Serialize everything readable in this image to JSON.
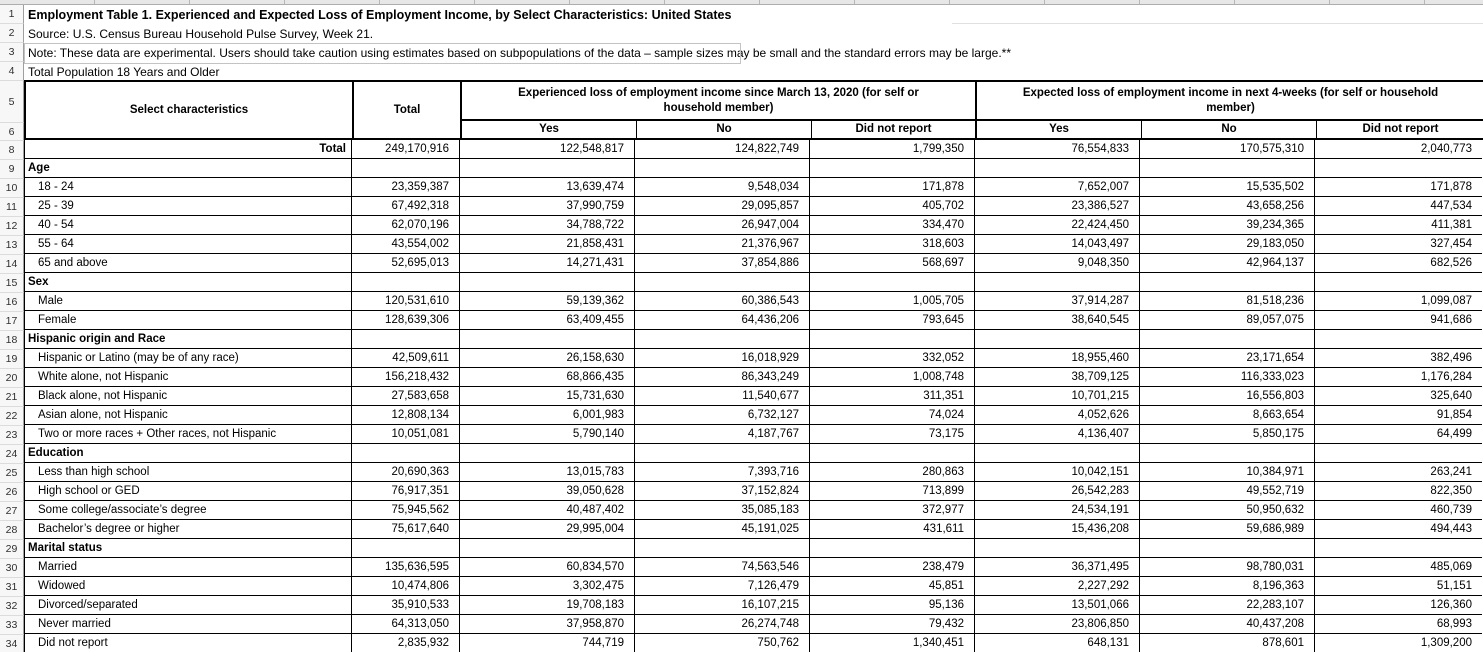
{
  "meta": [
    {
      "text": "Employment Table 1. Experienced and Expected Loss of Employment Income, by Select Characteristics: United States"
    },
    {
      "text": "Source: U.S. Census Bureau Household Pulse Survey, Week 21."
    },
    {
      "text": "Note: These data are experimental. Users should take caution using estimates based on subpopulations of the data – sample sizes may be small and the standard errors may be large.**"
    },
    {
      "text": "Total Population 18 Years and Older"
    }
  ],
  "header": {
    "characteristics": "Select characteristics",
    "total": "Total",
    "groups": [
      {
        "title": "Experienced loss of employment income since March 13, 2020 (for self or household member)",
        "subcols": [
          "Yes",
          "No",
          "Did not report"
        ]
      },
      {
        "title": "Expected loss of employment income in next 4-weeks (for self or household member)",
        "subcols": [
          "Yes",
          "No",
          "Did not report"
        ]
      }
    ]
  },
  "row_numbers": [
    1,
    2,
    3,
    4,
    5,
    6,
    8,
    9,
    10,
    11,
    12,
    13,
    14,
    15,
    16,
    17,
    18,
    19,
    20,
    21,
    22,
    23,
    24,
    25,
    26,
    27,
    28,
    29,
    30,
    31,
    32,
    33,
    34
  ],
  "rows": [
    {
      "n": 8,
      "kind": "total",
      "label": "Total",
      "values": [
        "249,170,916",
        "122,548,817",
        "124,822,749",
        "1,799,350",
        "76,554,833",
        "170,575,310",
        "2,040,773"
      ]
    },
    {
      "n": 9,
      "kind": "section",
      "label": "Age",
      "values": [
        "",
        "",
        "",
        "",
        "",
        "",
        ""
      ]
    },
    {
      "n": 10,
      "kind": "item",
      "label": "18 - 24",
      "values": [
        "23,359,387",
        "13,639,474",
        "9,548,034",
        "171,878",
        "7,652,007",
        "15,535,502",
        "171,878"
      ]
    },
    {
      "n": 11,
      "kind": "item",
      "label": "25 - 39",
      "values": [
        "67,492,318",
        "37,990,759",
        "29,095,857",
        "405,702",
        "23,386,527",
        "43,658,256",
        "447,534"
      ]
    },
    {
      "n": 12,
      "kind": "item",
      "label": "40 - 54",
      "values": [
        "62,070,196",
        "34,788,722",
        "26,947,004",
        "334,470",
        "22,424,450",
        "39,234,365",
        "411,381"
      ]
    },
    {
      "n": 13,
      "kind": "item",
      "label": "55 - 64",
      "values": [
        "43,554,002",
        "21,858,431",
        "21,376,967",
        "318,603",
        "14,043,497",
        "29,183,050",
        "327,454"
      ]
    },
    {
      "n": 14,
      "kind": "item",
      "label": "65 and above",
      "values": [
        "52,695,013",
        "14,271,431",
        "37,854,886",
        "568,697",
        "9,048,350",
        "42,964,137",
        "682,526"
      ]
    },
    {
      "n": 15,
      "kind": "section",
      "label": "Sex",
      "values": [
        "",
        "",
        "",
        "",
        "",
        "",
        ""
      ]
    },
    {
      "n": 16,
      "kind": "item",
      "label": "Male",
      "values": [
        "120,531,610",
        "59,139,362",
        "60,386,543",
        "1,005,705",
        "37,914,287",
        "81,518,236",
        "1,099,087"
      ]
    },
    {
      "n": 17,
      "kind": "item",
      "label": "Female",
      "values": [
        "128,639,306",
        "63,409,455",
        "64,436,206",
        "793,645",
        "38,640,545",
        "89,057,075",
        "941,686"
      ]
    },
    {
      "n": 18,
      "kind": "section",
      "label": "Hispanic origin and Race",
      "values": [
        "",
        "",
        "",
        "",
        "",
        "",
        ""
      ]
    },
    {
      "n": 19,
      "kind": "item",
      "label": "Hispanic or Latino (may be of any race)",
      "values": [
        "42,509,611",
        "26,158,630",
        "16,018,929",
        "332,052",
        "18,955,460",
        "23,171,654",
        "382,496"
      ]
    },
    {
      "n": 20,
      "kind": "item",
      "label": "White alone, not Hispanic",
      "values": [
        "156,218,432",
        "68,866,435",
        "86,343,249",
        "1,008,748",
        "38,709,125",
        "116,333,023",
        "1,176,284"
      ]
    },
    {
      "n": 21,
      "kind": "item",
      "label": "Black alone, not Hispanic",
      "values": [
        "27,583,658",
        "15,731,630",
        "11,540,677",
        "311,351",
        "10,701,215",
        "16,556,803",
        "325,640"
      ]
    },
    {
      "n": 22,
      "kind": "item",
      "label": "Asian alone, not Hispanic",
      "values": [
        "12,808,134",
        "6,001,983",
        "6,732,127",
        "74,024",
        "4,052,626",
        "8,663,654",
        "91,854"
      ]
    },
    {
      "n": 23,
      "kind": "item",
      "label": "Two or more races + Other races, not Hispanic",
      "values": [
        "10,051,081",
        "5,790,140",
        "4,187,767",
        "73,175",
        "4,136,407",
        "5,850,175",
        "64,499"
      ]
    },
    {
      "n": 24,
      "kind": "section",
      "label": "Education",
      "values": [
        "",
        "",
        "",
        "",
        "",
        "",
        ""
      ]
    },
    {
      "n": 25,
      "kind": "item",
      "label": "Less than high school",
      "values": [
        "20,690,363",
        "13,015,783",
        "7,393,716",
        "280,863",
        "10,042,151",
        "10,384,971",
        "263,241"
      ]
    },
    {
      "n": 26,
      "kind": "item",
      "label": "High school or GED",
      "values": [
        "76,917,351",
        "39,050,628",
        "37,152,824",
        "713,899",
        "26,542,283",
        "49,552,719",
        "822,350"
      ]
    },
    {
      "n": 27,
      "kind": "item",
      "label": "Some college/associate’s degree",
      "values": [
        "75,945,562",
        "40,487,402",
        "35,085,183",
        "372,977",
        "24,534,191",
        "50,950,632",
        "460,739"
      ]
    },
    {
      "n": 28,
      "kind": "item",
      "label": "Bachelor’s degree or higher",
      "values": [
        "75,617,640",
        "29,995,004",
        "45,191,025",
        "431,611",
        "15,436,208",
        "59,686,989",
        "494,443"
      ]
    },
    {
      "n": 29,
      "kind": "section",
      "label": "Marital status",
      "values": [
        "",
        "",
        "",
        "",
        "",
        "",
        ""
      ]
    },
    {
      "n": 30,
      "kind": "item",
      "label": "Married",
      "values": [
        "135,636,595",
        "60,834,570",
        "74,563,546",
        "238,479",
        "36,371,495",
        "98,780,031",
        "485,069"
      ]
    },
    {
      "n": 31,
      "kind": "item",
      "label": "Widowed",
      "values": [
        "10,474,806",
        "3,302,475",
        "7,126,479",
        "45,851",
        "2,227,292",
        "8,196,363",
        "51,151"
      ]
    },
    {
      "n": 32,
      "kind": "item",
      "label": "Divorced/separated",
      "values": [
        "35,910,533",
        "19,708,183",
        "16,107,215",
        "95,136",
        "13,501,066",
        "22,283,107",
        "126,360"
      ]
    },
    {
      "n": 33,
      "kind": "item",
      "label": "Never married",
      "values": [
        "64,313,050",
        "37,958,870",
        "26,274,748",
        "79,432",
        "23,806,850",
        "40,437,208",
        "68,993"
      ]
    },
    {
      "n": 34,
      "kind": "item",
      "label": "Did not report",
      "values": [
        "2,835,932",
        "744,719",
        "750,762",
        "1,340,451",
        "648,131",
        "878,601",
        "1,309,200"
      ]
    }
  ]
}
